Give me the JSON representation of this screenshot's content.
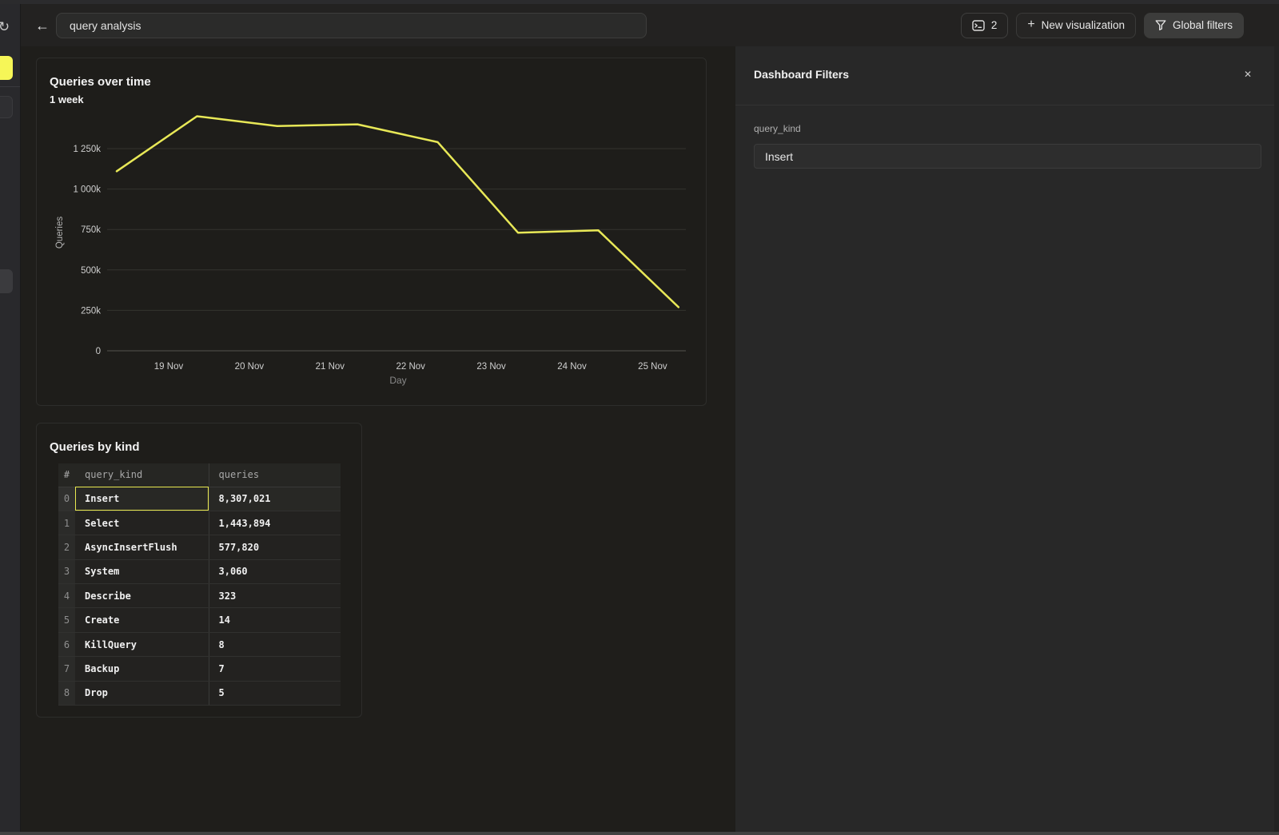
{
  "topbar": {
    "search_value": "query analysis",
    "console_count": "2",
    "new_viz_label": "New visualization",
    "global_filters_label": "Global filters"
  },
  "chart_card": {
    "title": "Queries over time",
    "subtitle": "1 week"
  },
  "chart_data": {
    "type": "line",
    "title": "Queries over time",
    "subtitle": "1 week",
    "xlabel": "Day",
    "ylabel": "Queries",
    "x_ticks": [
      "19 Nov",
      "20 Nov",
      "21 Nov",
      "22 Nov",
      "23 Nov",
      "24 Nov",
      "25 Nov"
    ],
    "y_ticks": [
      {
        "value": 0,
        "label": "0"
      },
      {
        "value": 250000,
        "label": "250k"
      },
      {
        "value": 500000,
        "label": "500k"
      },
      {
        "value": 750000,
        "label": "750k"
      },
      {
        "value": 1000000,
        "label": "1 000k"
      },
      {
        "value": 1250000,
        "label": "1 250k"
      }
    ],
    "ylim": [
      0,
      1500000
    ],
    "grid": true,
    "legend": false,
    "series": [
      {
        "name": "Queries",
        "color": "#e8e857",
        "values": [
          1110000,
          1450000,
          1390000,
          1400000,
          1290000,
          730000,
          745000,
          270000
        ]
      }
    ]
  },
  "table_card": {
    "title": "Queries by kind",
    "columns": [
      "#",
      "query_kind",
      "queries"
    ],
    "rows": [
      {
        "index": "0",
        "kind": "Insert",
        "queries": "8,307,021",
        "highlighted": true
      },
      {
        "index": "1",
        "kind": "Select",
        "queries": "1,443,894",
        "highlighted": false
      },
      {
        "index": "2",
        "kind": "AsyncInsertFlush",
        "queries": "577,820",
        "highlighted": false
      },
      {
        "index": "3",
        "kind": "System",
        "queries": "3,060",
        "highlighted": false
      },
      {
        "index": "4",
        "kind": "Describe",
        "queries": "323",
        "highlighted": false
      },
      {
        "index": "5",
        "kind": "Create",
        "queries": "14",
        "highlighted": false
      },
      {
        "index": "6",
        "kind": "KillQuery",
        "queries": "8",
        "highlighted": false
      },
      {
        "index": "7",
        "kind": "Backup",
        "queries": "7",
        "highlighted": false
      },
      {
        "index": "8",
        "kind": "Drop",
        "queries": "5",
        "highlighted": false
      }
    ]
  },
  "filters_panel": {
    "title": "Dashboard Filters",
    "close_glyph": "✕",
    "field_label": "query_kind",
    "field_value": "Insert"
  },
  "icons": {
    "refresh_glyph": "↻",
    "back_glyph": "←",
    "plus_glyph": "+"
  },
  "colors": {
    "line_yellow": "#e8e857",
    "sidebar_active_yellow": "#f6f657",
    "highlight_border_yellow": "#e9e950",
    "panel_bg": "#282828",
    "content_bg": "#1f1e1b",
    "topbar_bg": "#232221"
  }
}
